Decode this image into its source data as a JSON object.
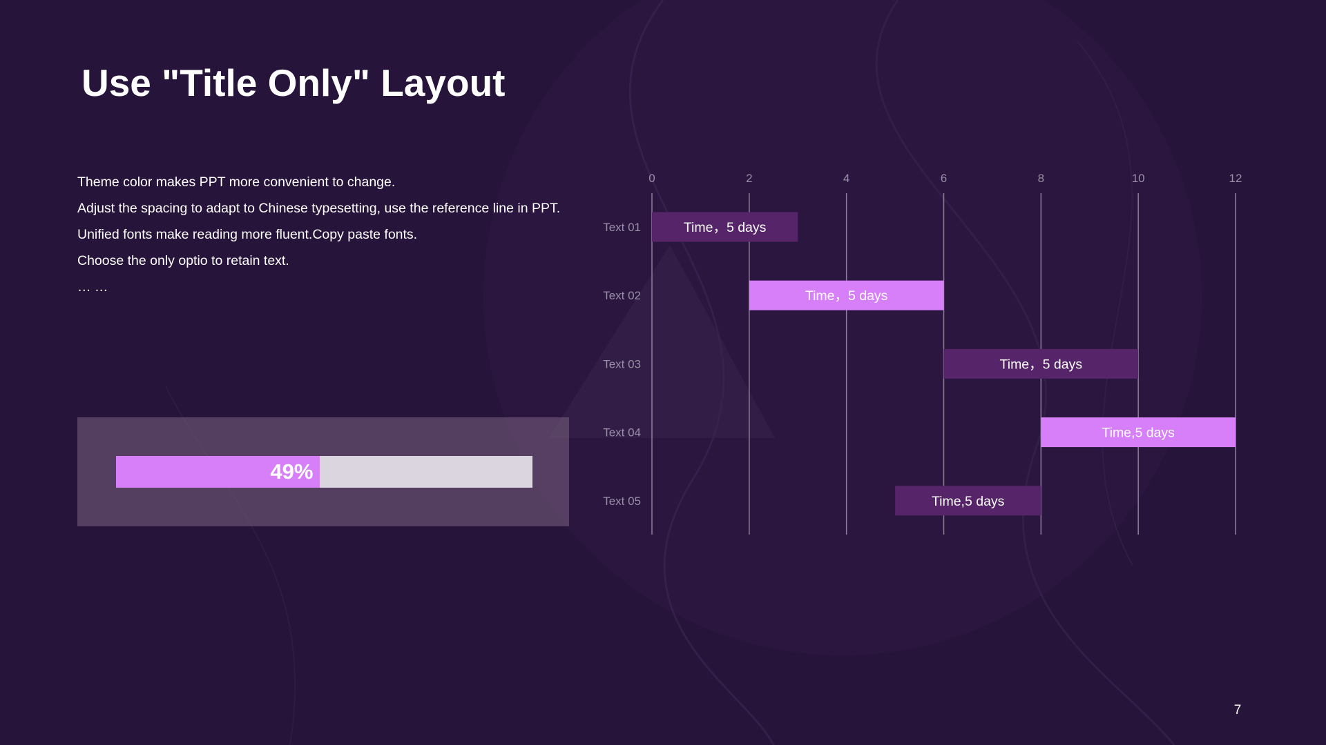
{
  "slide": {
    "title": "Use \"Title Only\" Layout",
    "page_number": "7",
    "body_lines": [
      "Theme  color makes PPT more convenient to change.",
      "Adjust the spacing to adapt to Chinese typesetting, use the reference line in PPT.",
      "Unified fonts make reading more fluent.Copy paste fonts.",
      "Choose the only optio to retain text.",
      "…  …"
    ]
  },
  "progress": {
    "label": "49%",
    "value": 0.49,
    "fill_color": "#d77ff8",
    "track_color": "#dad5de"
  },
  "colors": {
    "background": "#27143a",
    "bar_dark": "#562468",
    "bar_light": "#d77ff8",
    "gridline": "#8f7f9c",
    "axis_text": "#9c8fa8"
  },
  "chart_data": {
    "type": "bar",
    "orientation": "horizontal-gantt",
    "x_ticks": [
      "0",
      "2",
      "4",
      "6",
      "8",
      "10",
      "12"
    ],
    "xlim": [
      0,
      12
    ],
    "grid": true,
    "tasks": [
      {
        "label": "Text 01",
        "start": 0,
        "end": 3,
        "bar_text": "Time，5 days",
        "color": "#562468"
      },
      {
        "label": "Text 02",
        "start": 2,
        "end": 6,
        "bar_text": "Time，5 days",
        "color": "#d77ff8"
      },
      {
        "label": "Text 03",
        "start": 6,
        "end": 10,
        "bar_text": "Time，5 days",
        "color": "#562468"
      },
      {
        "label": "Text 04",
        "start": 8,
        "end": 12,
        "bar_text": "Time,5 days",
        "color": "#d77ff8"
      },
      {
        "label": "Text 05",
        "start": 5,
        "end": 8,
        "bar_text": "Time,5 days",
        "color": "#562468"
      }
    ]
  }
}
